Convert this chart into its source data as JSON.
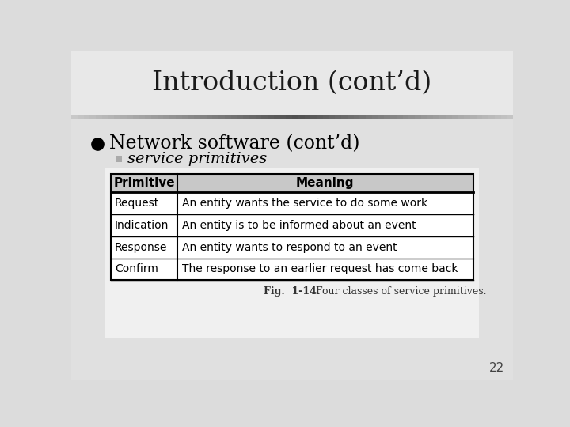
{
  "title": "Introduction (cont’d)",
  "bullet1": "Network software (cont’d)",
  "bullet2": "service primitives",
  "table_headers": [
    "Primitive",
    "Meaning"
  ],
  "table_rows": [
    [
      "Request",
      "An entity wants the service to do some work"
    ],
    [
      "Indication",
      "An entity is to be informed about an event"
    ],
    [
      "Response",
      "An entity wants to respond to an event"
    ],
    [
      "Confirm",
      "The response to an earlier request has come back"
    ]
  ],
  "fig_caption_bold": "Fig.  1-14.",
  "fig_caption_normal": " Four classes of service primitives.",
  "page_number": "22",
  "slide_bg": "#dcdcdc",
  "content_bg": "#f5f5f5",
  "title_color": "#1a1a1a",
  "text_color": "#000000",
  "table_bg": "#ffffff",
  "table_header_fill": "#c8c8c8",
  "separator_dark": "#555555",
  "bullet_color": "#000000"
}
